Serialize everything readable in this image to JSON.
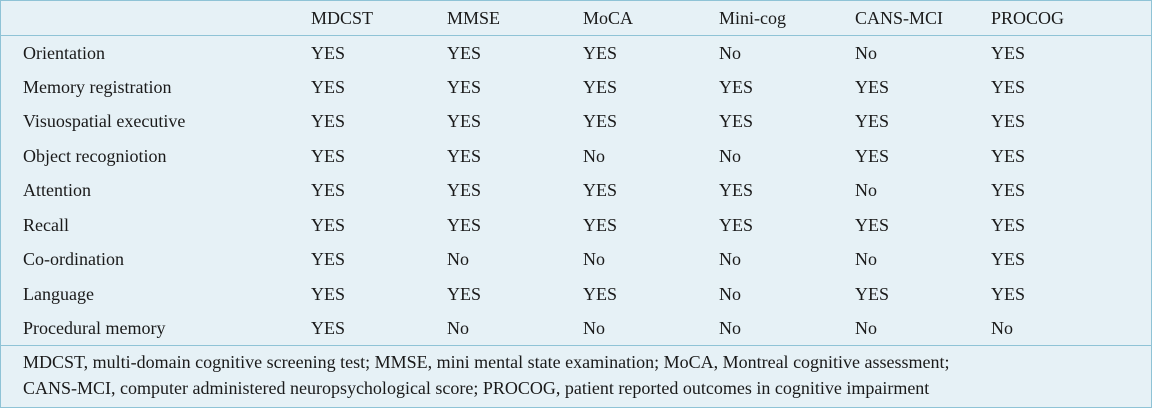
{
  "table": {
    "columns": [
      "",
      "MDCST",
      "MMSE",
      "MoCA",
      "Mini-cog",
      "CANS-MCI",
      "PROCOG"
    ],
    "rows": [
      {
        "label": "Orientation",
        "values": [
          "YES",
          "YES",
          "YES",
          "No",
          "No",
          "YES"
        ]
      },
      {
        "label": "Memory registration",
        "values": [
          "YES",
          "YES",
          "YES",
          "YES",
          "YES",
          "YES"
        ]
      },
      {
        "label": "Visuospatial executive",
        "values": [
          "YES",
          "YES",
          "YES",
          "YES",
          "YES",
          "YES"
        ]
      },
      {
        "label": "Object recogniotion",
        "values": [
          "YES",
          "YES",
          "No",
          "No",
          "YES",
          "YES"
        ]
      },
      {
        "label": "Attention",
        "values": [
          "YES",
          "YES",
          "YES",
          "YES",
          "No",
          "YES"
        ]
      },
      {
        "label": "Recall",
        "values": [
          "YES",
          "YES",
          "YES",
          "YES",
          "YES",
          "YES"
        ]
      },
      {
        "label": "Co-ordination",
        "values": [
          "YES",
          "No",
          "No",
          "No",
          "No",
          "YES"
        ]
      },
      {
        "label": "Language",
        "values": [
          "YES",
          "YES",
          "YES",
          "No",
          "YES",
          "YES"
        ]
      },
      {
        "label": "Procedural memory",
        "values": [
          "YES",
          "No",
          "No",
          "No",
          "No",
          "No"
        ]
      }
    ]
  },
  "footnote": {
    "line1": "MDCST, multi-domain cognitive screening test; MMSE, mini mental state examination; MoCA, Montreal cognitive assessment;",
    "line2": "CANS-MCI, computer administered neuropsychological score; PROCOG, patient reported outcomes in cognitive impairment"
  },
  "colors": {
    "background": "#e6f1f6",
    "rule": "#8fc3d6",
    "text": "#1a1a1a"
  }
}
